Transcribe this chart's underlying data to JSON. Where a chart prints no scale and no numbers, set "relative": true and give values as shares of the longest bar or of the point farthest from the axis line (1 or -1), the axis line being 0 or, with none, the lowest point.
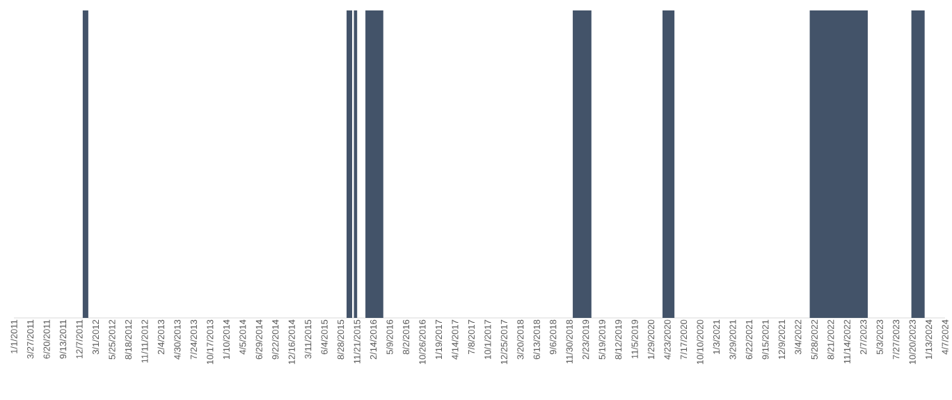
{
  "chart_data": {
    "type": "area",
    "relative": true,
    "color": "#435369",
    "x": [
      "2011-12-25",
      "2011-12-25",
      "2012-01-23",
      "2012-01-23",
      "2015-09-28",
      "2015-09-28",
      "2015-10-27",
      "2015-10-27",
      "2015-11-05",
      "2015-11-05",
      "2015-11-22",
      "2015-11-22",
      "2016-01-04",
      "2016-01-04",
      "2016-04-06",
      "2016-04-06",
      "2018-12-18",
      "2018-12-18",
      "2019-03-25",
      "2019-03-25",
      "2020-03-29",
      "2020-03-29",
      "2020-05-30",
      "2020-05-30",
      "2022-05-04",
      "2022-05-04",
      "2023-03-02",
      "2023-03-02",
      "2023-10-15",
      "2023-10-15",
      "2023-12-23",
      "2023-12-23"
    ],
    "values": [
      0,
      1,
      1,
      0,
      0,
      1,
      1,
      0,
      0,
      1,
      1,
      0,
      0,
      1,
      1,
      0,
      0,
      1,
      1,
      0,
      0,
      1,
      1,
      0,
      0,
      1,
      1,
      0,
      0,
      1,
      1,
      0
    ],
    "xlim": [
      "2011-01-01",
      "2024-04-07"
    ],
    "xticks": [
      {
        "value": "2011-01-01",
        "label": "1/1/2011"
      },
      {
        "value": "2011-03-27",
        "label": "3/27/2011"
      },
      {
        "value": "2011-06-20",
        "label": "6/20/2011"
      },
      {
        "value": "2011-09-13",
        "label": "9/13/2011"
      },
      {
        "value": "2011-12-07",
        "label": "12/7/2011"
      },
      {
        "value": "2012-03-01",
        "label": "3/1/2012"
      },
      {
        "value": "2012-05-25",
        "label": "5/25/2012"
      },
      {
        "value": "2012-08-18",
        "label": "8/18/2012"
      },
      {
        "value": "2012-11-11",
        "label": "11/11/2012"
      },
      {
        "value": "2013-02-04",
        "label": "2/4/2013"
      },
      {
        "value": "2013-04-30",
        "label": "4/30/2013"
      },
      {
        "value": "2013-07-24",
        "label": "7/24/2013"
      },
      {
        "value": "2013-10-17",
        "label": "10/17/2013"
      },
      {
        "value": "2014-01-10",
        "label": "1/10/2014"
      },
      {
        "value": "2014-04-05",
        "label": "4/5/2014"
      },
      {
        "value": "2014-06-29",
        "label": "6/29/2014"
      },
      {
        "value": "2014-09-22",
        "label": "9/22/2014"
      },
      {
        "value": "2014-12-16",
        "label": "12/16/2014"
      },
      {
        "value": "2015-03-11",
        "label": "3/11/2015"
      },
      {
        "value": "2015-06-04",
        "label": "6/4/2015"
      },
      {
        "value": "2015-08-28",
        "label": "8/28/2015"
      },
      {
        "value": "2015-11-21",
        "label": "11/21/2015"
      },
      {
        "value": "2016-02-14",
        "label": "2/14/2016"
      },
      {
        "value": "2016-05-09",
        "label": "5/9/2016"
      },
      {
        "value": "2016-08-02",
        "label": "8/2/2016"
      },
      {
        "value": "2016-10-26",
        "label": "10/26/2016"
      },
      {
        "value": "2017-01-19",
        "label": "1/19/2017"
      },
      {
        "value": "2017-04-14",
        "label": "4/14/2017"
      },
      {
        "value": "2017-07-08",
        "label": "7/8/2017"
      },
      {
        "value": "2017-10-01",
        "label": "10/1/2017"
      },
      {
        "value": "2017-12-25",
        "label": "12/25/2017"
      },
      {
        "value": "2018-03-20",
        "label": "3/20/2018"
      },
      {
        "value": "2018-06-13",
        "label": "6/13/2018"
      },
      {
        "value": "2018-09-06",
        "label": "9/6/2018"
      },
      {
        "value": "2018-11-30",
        "label": "11/30/2018"
      },
      {
        "value": "2019-02-23",
        "label": "2/23/2019"
      },
      {
        "value": "2019-05-19",
        "label": "5/19/2019"
      },
      {
        "value": "2019-08-12",
        "label": "8/12/2019"
      },
      {
        "value": "2019-11-05",
        "label": "11/5/2019"
      },
      {
        "value": "2020-01-29",
        "label": "1/29/2020"
      },
      {
        "value": "2020-04-23",
        "label": "4/23/2020"
      },
      {
        "value": "2020-07-17",
        "label": "7/17/2020"
      },
      {
        "value": "2020-10-10",
        "label": "10/10/2020"
      },
      {
        "value": "2021-01-03",
        "label": "1/3/2021"
      },
      {
        "value": "2021-03-29",
        "label": "3/29/2021"
      },
      {
        "value": "2021-06-22",
        "label": "6/22/2021"
      },
      {
        "value": "2021-09-15",
        "label": "9/15/2021"
      },
      {
        "value": "2021-12-09",
        "label": "12/9/2021"
      },
      {
        "value": "2022-03-04",
        "label": "3/4/2022"
      },
      {
        "value": "2022-05-28",
        "label": "5/28/2022"
      },
      {
        "value": "2022-08-21",
        "label": "8/21/2022"
      },
      {
        "value": "2022-11-14",
        "label": "11/14/2022"
      },
      {
        "value": "2023-02-07",
        "label": "2/7/2023"
      },
      {
        "value": "2023-05-03",
        "label": "5/3/2023"
      },
      {
        "value": "2023-07-27",
        "label": "7/27/2023"
      },
      {
        "value": "2023-10-20",
        "label": "10/20/2023"
      },
      {
        "value": "2024-01-13",
        "label": "1/13/2024"
      },
      {
        "value": "2024-04-07",
        "label": "4/7/2024"
      }
    ]
  }
}
